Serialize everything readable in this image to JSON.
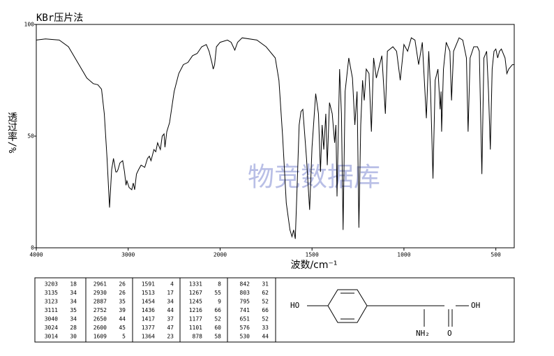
{
  "chart_data": {
    "type": "line",
    "title": "KBr压片法",
    "xlabel": "波数/cm⁻¹",
    "ylabel": "透过率/%",
    "watermark": "物竞数据库",
    "xlim": [
      4000,
      400
    ],
    "xticks": [
      4000,
      3000,
      2000,
      1500,
      1000,
      500
    ],
    "xscale": {
      "type": "piecewise",
      "breaks": [
        2000
      ],
      "factor": 2
    },
    "ylim": [
      0,
      100
    ],
    "yticks": [
      0,
      50,
      100
    ],
    "color": "#000000",
    "x": [
      4000,
      3900,
      3750,
      3650,
      3550,
      3450,
      3380,
      3330,
      3290,
      3260,
      3230,
      3203,
      3180,
      3160,
      3135,
      3123,
      3111,
      3090,
      3060,
      3040,
      3024,
      3014,
      2990,
      2961,
      2945,
      2930,
      2910,
      2887,
      2860,
      2820,
      2790,
      2770,
      2752,
      2720,
      2700,
      2680,
      2650,
      2630,
      2610,
      2600,
      2580,
      2550,
      2500,
      2450,
      2400,
      2350,
      2300,
      2250,
      2200,
      2150,
      2120,
      2090,
      2075,
      2060,
      2040,
      2000,
      1960,
      1940,
      1920,
      1905,
      1880,
      1800,
      1750,
      1700,
      1680,
      1660,
      1640,
      1620,
      1609,
      1600,
      1591,
      1580,
      1570,
      1560,
      1550,
      1530,
      1513,
      1500,
      1480,
      1465,
      1454,
      1445,
      1436,
      1425,
      1417,
      1405,
      1390,
      1377,
      1370,
      1364,
      1350,
      1340,
      1331,
      1320,
      1300,
      1280,
      1267,
      1255,
      1245,
      1235,
      1225,
      1216,
      1205,
      1190,
      1177,
      1165,
      1150,
      1120,
      1101,
      1090,
      1060,
      1040,
      1020,
      1000,
      980,
      960,
      940,
      920,
      900,
      878,
      865,
      855,
      842,
      830,
      815,
      803,
      798,
      795,
      785,
      770,
      750,
      741,
      730,
      700,
      680,
      660,
      651,
      640,
      620,
      600,
      590,
      576,
      565,
      550,
      540,
      530,
      520,
      510,
      500,
      490,
      480,
      470,
      450,
      440,
      430,
      410,
      400
    ],
    "values": [
      93,
      93.5,
      93,
      90,
      83,
      76,
      73.5,
      73,
      71,
      60,
      40,
      18,
      35,
      40,
      34,
      34,
      35,
      38,
      39,
      34,
      28,
      30,
      27,
      26,
      29,
      26,
      33,
      35,
      37,
      36,
      40,
      41,
      39,
      44,
      43,
      47,
      44,
      50,
      51,
      45,
      52,
      56,
      70,
      78,
      82,
      83,
      86,
      87,
      90,
      91,
      88,
      83,
      80,
      82,
      90,
      92,
      93,
      92,
      88.5,
      92,
      94,
      93,
      90,
      85,
      75,
      50,
      20,
      8,
      5,
      8,
      4,
      30,
      55,
      61,
      62,
      40,
      17,
      45,
      69,
      60,
      34,
      55,
      44,
      60,
      37,
      65,
      60,
      47,
      55,
      23,
      80,
      60,
      8,
      70,
      85,
      76,
      55,
      70,
      9,
      55,
      75,
      66,
      80,
      78,
      52,
      85,
      76,
      86,
      60,
      88,
      90,
      88,
      75,
      91,
      88,
      94,
      93,
      82,
      92,
      58,
      88,
      70,
      31,
      75,
      80,
      62,
      70,
      52,
      80,
      92,
      88,
      66,
      88,
      94,
      93,
      85,
      52,
      85,
      90,
      90,
      88,
      33,
      85,
      88,
      70,
      44,
      80,
      88,
      89,
      85,
      88,
      89,
      85,
      78,
      80,
      82,
      82
    ]
  },
  "table": {
    "rows": [
      [
        "3203",
        "18",
        "2961",
        "26",
        "1591",
        "4",
        "1331",
        "8",
        "842",
        "31"
      ],
      [
        "3135",
        "34",
        "2930",
        "26",
        "1513",
        "17",
        "1267",
        "55",
        "803",
        "62"
      ],
      [
        "3123",
        "34",
        "2887",
        "35",
        "1454",
        "34",
        "1245",
        "9",
        "795",
        "52"
      ],
      [
        "3111",
        "35",
        "2752",
        "39",
        "1436",
        "44",
        "1216",
        "66",
        "741",
        "66"
      ],
      [
        "3040",
        "34",
        "2650",
        "44",
        "1417",
        "37",
        "1177",
        "52",
        "651",
        "52"
      ],
      [
        "3024",
        "28",
        "2600",
        "45",
        "1377",
        "47",
        "1101",
        "60",
        "576",
        "33"
      ],
      [
        "3014",
        "30",
        "1609",
        "5",
        "1364",
        "23",
        "878",
        "58",
        "530",
        "44"
      ]
    ]
  },
  "structure": {
    "labels": [
      "HO",
      "NH₂",
      "O",
      "OH"
    ]
  }
}
